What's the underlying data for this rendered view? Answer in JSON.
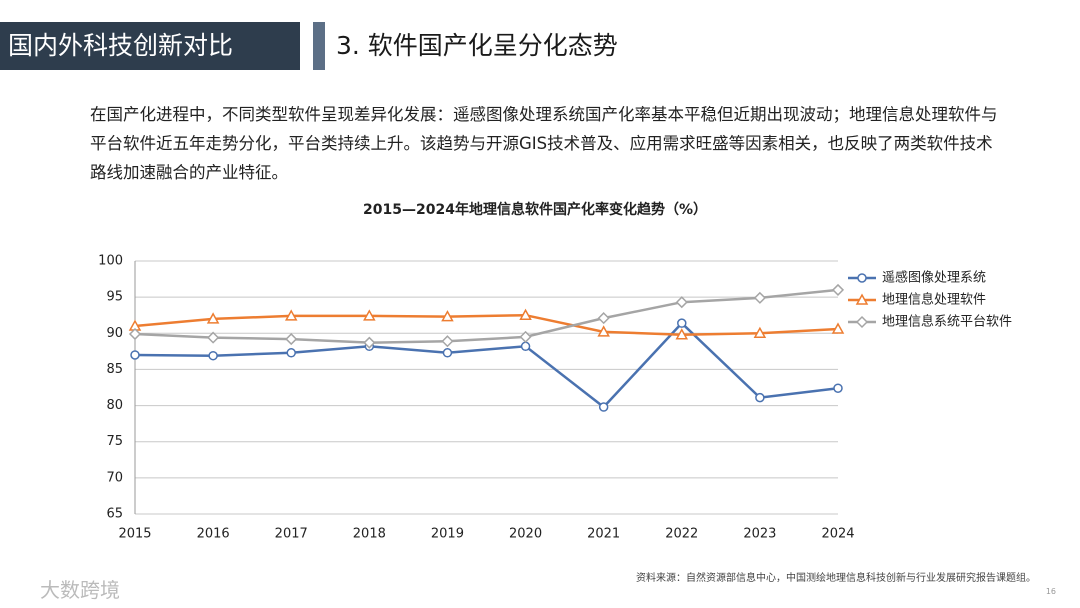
{
  "header": {
    "title": "国内外科技创新对比",
    "section": "3. 软件国产化呈分化态势"
  },
  "paragraph": "在国产化进程中，不同类型软件呈现差异化发展：遥感图像处理系统国产化率基本平稳但近期出现波动；地理信息处理软件与平台软件近五年走势分化，平台类持续上升。该趋势与开源GIS技术普及、应用需求旺盛等因素相关，也反映了两类软件技术路线加速融合的产业特征。",
  "chart_data": {
    "type": "line",
    "title": "2015—2024年地理信息软件国产化率变化趋势（%）",
    "categories": [
      "2015",
      "2016",
      "2017",
      "2018",
      "2019",
      "2020",
      "2021",
      "2022",
      "2023",
      "2024"
    ],
    "series": [
      {
        "name": "遥感图像处理系统",
        "color": "#4a72b0",
        "marker": "circle",
        "values": [
          87.0,
          86.9,
          87.3,
          88.2,
          87.3,
          88.2,
          79.8,
          91.4,
          81.1,
          82.4
        ]
      },
      {
        "name": "地理信息处理软件",
        "color": "#ed7d31",
        "marker": "triangle",
        "values": [
          91.0,
          92.0,
          92.4,
          92.4,
          92.3,
          92.5,
          90.2,
          89.8,
          90.0,
          90.6
        ]
      },
      {
        "name": "地理信息系统平台软件",
        "color": "#a5a5a5",
        "marker": "diamond",
        "values": [
          89.9,
          89.4,
          89.2,
          88.7,
          88.9,
          89.5,
          92.1,
          94.3,
          94.9,
          96.0
        ]
      }
    ],
    "ylim": [
      65,
      100
    ],
    "yticks": [
      65,
      70,
      75,
      80,
      85,
      90,
      95,
      100
    ],
    "grid": true,
    "legend": "right"
  },
  "source": "资料来源：自然资源部信息中心，中国测绘地理信息科技创新与行业发展研究报告课题组。",
  "page_number": "16",
  "watermark": "大数跨境"
}
